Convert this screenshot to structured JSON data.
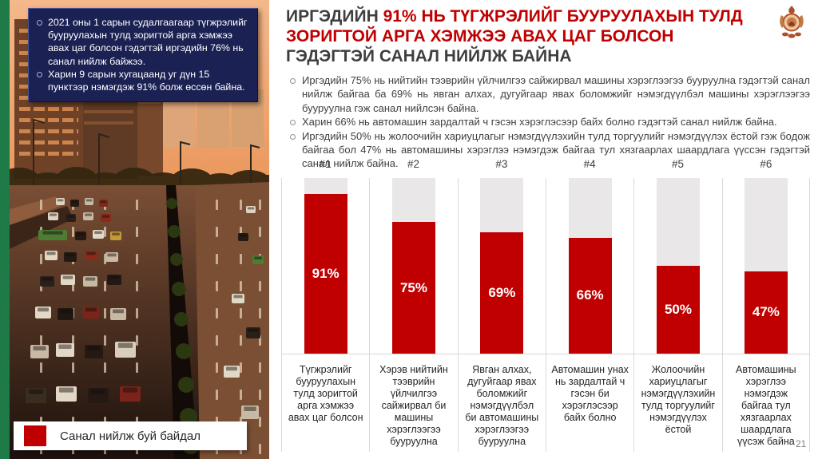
{
  "note_box": {
    "items": [
      "2021 оны 1 сарын судалгаагаар түгжрэлийг бууруулахын тулд зоригтой арга хэмжээ авах цаг болсон гэдэгтэй иргэдийн 76% нь санал нийлж байжээ.",
      "Харин 9 сарын хугацаанд уг дүн 15 пунктээр нэмэгдэж 91% болж өссөн байна."
    ]
  },
  "title": {
    "part1_dark": "ИРГЭДИЙН ",
    "part2_red": "91% НЬ ТҮГЖРЭЛИЙГ БУУРУУЛАХЫН ТУЛД ЗОРИГТОЙ АРГА ХЭМЖЭЭ АВАХ ЦАГ БОЛСОН ",
    "part3_dark": "ГЭДЭГТЭЙ САНАЛ НИЙЛЖ БАЙНА"
  },
  "body_bullets": {
    "items": [
      "Иргэдийн 75% нь нийтийн тээврийн үйлчилгээ сайжирвал машины хэрэглээгээ бууруулна гэдэгтэй санал нийлж байгаа ба 69% нь явган алхах, дугуйгаар явах боломжийг нэмэгдүүлбэл машины хэрэглээгээ бууруулна гэж санал нийлсэн байна.",
      "Харин 66% нь автомашин зардалтай ч гэсэн хэрэглэсээр байх болно гэдэгтэй санал нийлж байна.",
      "Иргэдийн 50% нь жолоочийн хариуцлагыг нэмэгдүүлэхийн тулд торгуулийг нэмэгдүүлэх ёстой гэж бодож байгаа бол 47% нь автомашины хэрэглээ нэмэгдэж байгаа тул хязгаарлах шаардлага үүссэн гэдэгтэй санал нийлж байна."
    ]
  },
  "chart_data": {
    "type": "bar",
    "orientation": "vertical",
    "categories": [
      "#1",
      "#2",
      "#3",
      "#4",
      "#5",
      "#6"
    ],
    "values": [
      91,
      75,
      69,
      66,
      50,
      47
    ],
    "value_suffix": "%",
    "category_labels": [
      "Түгжрэлийг бууруулахын тулд зоригтой арга хэмжээ авах цаг болсон",
      "Хэрэв нийтийн тээврийн үйлчилгээ сайжирвал би машины хэрэглээгээ бууруулна",
      "Явган алхах, дугуйгаар явах боломжийг нэмэгдүүлбэл би автомашины хэрэглээгээ бууруулна",
      "Автомашин унах нь зардалтай ч гэсэн би хэрэглэсээр байх болно",
      "Жолоочийн хариуцлагыг нэмэгдүүлэхийн тулд торгуулийг нэмэгдүүлэх ёстой",
      "Автомашины хэрэглээ нэмэгдэж байгаа тул хязгаарлах шаардлага үүсэж байна"
    ],
    "ylim": [
      0,
      100
    ],
    "bar_color": "#c00000",
    "track_color": "#e9e7e7",
    "value_labels": "inside, white bold",
    "grid": "light vertical column separators",
    "legend_position": "bottom-left overlay on photo"
  },
  "legend": {
    "label": "Санал нийлж буй байдал",
    "swatch_color": "#c00000"
  },
  "page_number": "21",
  "icons": {
    "emblem": "mongolia-state-emblem-icon",
    "bullet": "hollow-circle-bullet-icon"
  },
  "colors": {
    "accent_red": "#c00000",
    "title_dark": "#3f3f3f",
    "note_box_bg": "#1b2153",
    "green_strip": "#1e7a46",
    "body_text": "#404040"
  }
}
